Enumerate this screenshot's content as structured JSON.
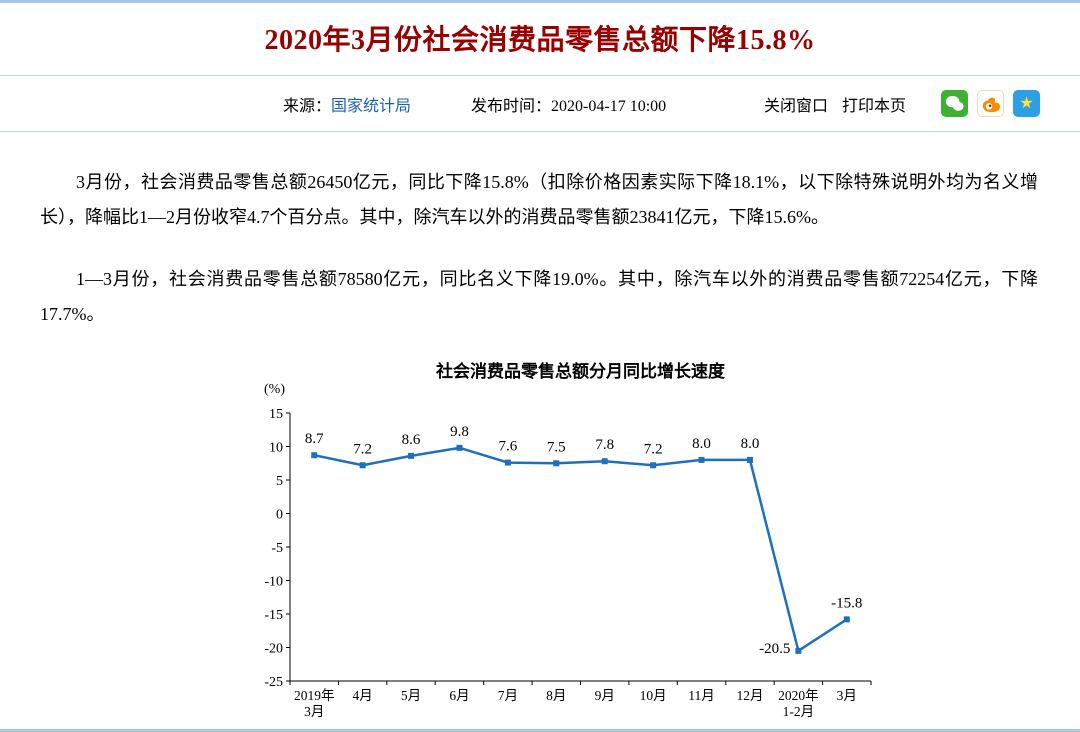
{
  "page": {
    "title": "2020年3月份社会消费品零售总额下降15.8%",
    "title_color": "#990000",
    "rule_color": "#a9c6e2"
  },
  "meta": {
    "source_label": "来源：",
    "source_link_text": "国家统计局",
    "publish_label": "发布时间：",
    "publish_value": "2020-04-17 10:00",
    "close_window_label": "关闭窗口",
    "print_page_label": "打印本页",
    "link_color": "#1b62b0",
    "share_icons": [
      {
        "name": "wechat-share-icon",
        "color": "#3eb135"
      },
      {
        "name": "weibo-share-icon",
        "color": "#ff8a00"
      },
      {
        "name": "qzone-favorite-icon",
        "color": "#2ca0e3"
      }
    ]
  },
  "article": {
    "paragraphs": [
      "3月份，社会消费品零售总额26450亿元，同比下降15.8%（扣除价格因素实际下降18.1%，以下除特殊说明外均为名义增长），降幅比1—2月份收窄4.7个百分点。其中，除汽车以外的消费品零售额23841亿元，下降15.6%。",
      "1—3月份，社会消费品零售总额78580亿元，同比名义下降19.0%。其中，除汽车以外的消费品零售额72254亿元，下降17.7%。"
    ]
  },
  "chart_data": {
    "type": "line",
    "title": "社会消费品零售总额分月同比增长速度",
    "ylabel": "(%)",
    "categories": [
      [
        "2019年",
        "3月"
      ],
      "4月",
      "5月",
      "6月",
      "7月",
      "8月",
      "9月",
      "10月",
      "11月",
      "12月",
      [
        "2020年",
        "1-2月"
      ],
      "3月"
    ],
    "values": [
      8.7,
      7.2,
      8.6,
      9.8,
      7.6,
      7.5,
      7.8,
      7.2,
      8.0,
      8.0,
      -20.5,
      -15.8
    ],
    "ylim": [
      -25,
      15
    ],
    "ytick_step": 5,
    "line_color": "#1f6fbf",
    "marker": "square",
    "grid": false,
    "legend": "none"
  }
}
